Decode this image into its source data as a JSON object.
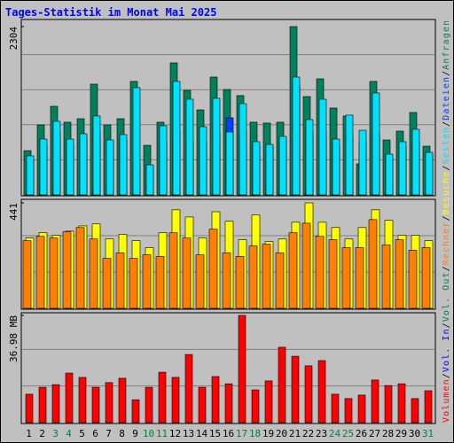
{
  "title": "Tages-Statistik im Monat Mai 2025",
  "separator": "/",
  "categories": [
    "1",
    "2",
    "3",
    "4",
    "5",
    "6",
    "7",
    "8",
    "9",
    "10",
    "11",
    "12",
    "13",
    "14",
    "15",
    "16",
    "17",
    "18",
    "19",
    "20",
    "21",
    "22",
    "23",
    "24",
    "25",
    "26",
    "27",
    "28",
    "29",
    "30",
    "31"
  ],
  "category_colors": [
    "#000000",
    "#000000",
    "#008040",
    "#008040",
    "#000000",
    "#000000",
    "#000000",
    "#000000",
    "#000000",
    "#008040",
    "#008040",
    "#000000",
    "#000000",
    "#000000",
    "#000000",
    "#000000",
    "#008040",
    "#008040",
    "#000000",
    "#000000",
    "#000000",
    "#000000",
    "#000000",
    "#008040",
    "#008040",
    "#000000",
    "#000000",
    "#000000",
    "#000000",
    "#000000",
    "#008040"
  ],
  "chart_data": [
    {
      "type": "bar",
      "ylim": [
        0,
        2304
      ],
      "yticks": [
        2304
      ],
      "grid": true,
      "series": [
        {
          "name": "Anfragen",
          "color": "#00805c",
          "values": [
            606,
            958,
            1213,
            995,
            1043,
            1516,
            958,
            1043,
            1553,
            679,
            995,
            1807,
            1431,
            1164,
            1613,
            1443,
            1359,
            995,
            983,
            995,
            2304,
            1346,
            1589,
            1189,
            1080,
            425,
            1553,
            752,
            873,
            1128,
            667
          ]
        },
        {
          "name": "Dateien",
          "color": "#0040ff",
          "values": [
            485,
            667,
            849,
            667,
            788,
            849,
            728,
            752,
            425,
            388,
            728,
            849,
            728,
            728,
            849,
            1055,
            849,
            667,
            667,
            740,
            1516,
            849,
            849,
            667,
            788,
            728,
            849,
            509,
            667,
            728,
            546
          ]
        },
        {
          "name": "Seiten",
          "color": "#00e0ff",
          "values": [
            534,
            764,
            1007,
            764,
            837,
            1080,
            752,
            825,
            1468,
            412,
            946,
            1553,
            1310,
            934,
            1322,
            861,
            1249,
            728,
            691,
            801,
            1613,
            1031,
            1310,
            764,
            1092,
            885,
            1395,
            558,
            728,
            898,
            582
          ]
        }
      ]
    },
    {
      "type": "bar",
      "ylim": [
        0,
        441
      ],
      "yticks": [
        441
      ],
      "grid": true,
      "series": [
        {
          "name": "Besuche",
          "color": "#ffff00",
          "values": [
            294,
            316,
            305,
            323,
            345,
            353,
            290,
            309,
            283,
            254,
            316,
            412,
            382,
            294,
            404,
            364,
            287,
            390,
            279,
            290,
            360,
            441,
            360,
            338,
            290,
            338,
            412,
            368,
            305,
            305,
            283
          ]
        },
        {
          "name": "Rechner",
          "color": "#ff8000",
          "values": [
            283,
            301,
            294,
            320,
            338,
            290,
            209,
            232,
            209,
            224,
            217,
            316,
            294,
            224,
            331,
            232,
            217,
            261,
            268,
            232,
            316,
            356,
            301,
            287,
            254,
            254,
            371,
            265,
            287,
            243,
            254
          ]
        }
      ]
    },
    {
      "type": "bar",
      "ylim": [
        0,
        36.98
      ],
      "yticks": [
        {
          "value": 36.98,
          "label": "36.98 MB"
        }
      ],
      "grid": true,
      "series": [
        {
          "name": "Volumen",
          "color": "#ff0000",
          "values": [
            9.8,
            12.2,
            13.1,
            17.1,
            15.6,
            12.2,
            13.8,
            15.3,
            7.9,
            12.2,
            17.4,
            15.6,
            23.5,
            12.2,
            15.9,
            13.4,
            36.98,
            11.3,
            14.4,
            26.0,
            22.9,
            19.6,
            21.4,
            9.8,
            8.3,
            9.5,
            14.7,
            12.8,
            13.4,
            8.3,
            11.0
          ]
        }
      ],
      "extra_legend": [
        {
          "name": "Vol. In",
          "color": "#0000ff"
        },
        {
          "name": "Vol. Out",
          "color": "#008040"
        }
      ]
    }
  ]
}
